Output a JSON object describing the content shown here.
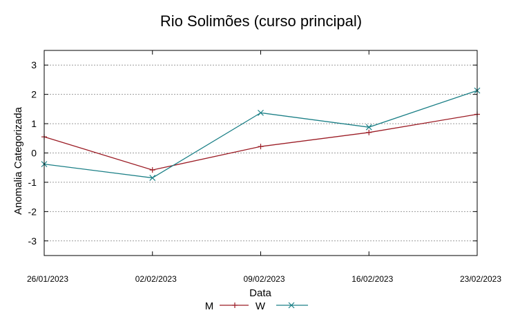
{
  "chart_data": {
    "type": "line",
    "title": "Rio Solimões (curso principal)",
    "xlabel": "Data",
    "ylabel": "Anomalia Categorizada",
    "categories": [
      "26/01/2023",
      "02/02/2023",
      "09/02/2023",
      "16/02/2023",
      "23/02/2023"
    ],
    "yticks": [
      "3",
      "2",
      "1",
      "0",
      "-1",
      "-2",
      "-3"
    ],
    "ylim": [
      -3.5,
      3.5
    ],
    "grid": true,
    "legend_position": "bottom",
    "series": [
      {
        "name": "M",
        "marker": "plus",
        "color": "#9b1b24",
        "values": [
          0.55,
          -0.58,
          0.22,
          0.7,
          1.32
        ]
      },
      {
        "name": "W",
        "marker": "x",
        "color": "#1a7f86",
        "values": [
          -0.38,
          -0.85,
          1.37,
          0.88,
          2.13
        ]
      }
    ]
  }
}
